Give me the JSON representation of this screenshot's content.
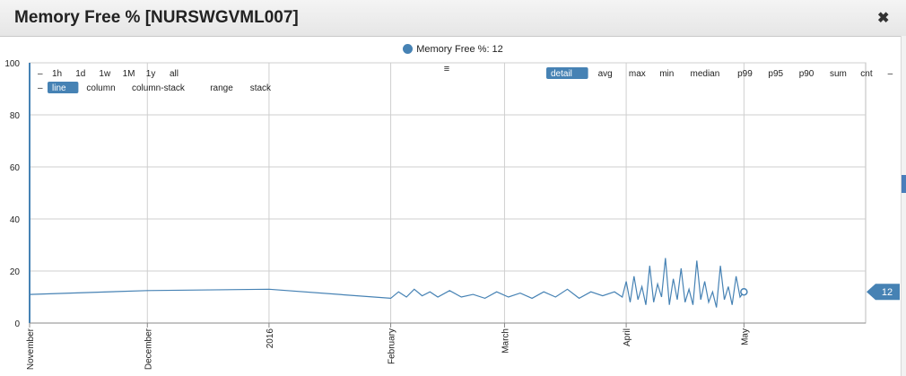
{
  "window": {
    "title": "Memory Free % [NURSWGVML007]",
    "close_icon": "close-icon",
    "accent_color": "#4682b4"
  },
  "legend": {
    "label": "Memory Free %: 12"
  },
  "range_buttons": [
    "1h",
    "1d",
    "1w",
    "1M",
    "1y",
    "all"
  ],
  "type_buttons": [
    "line",
    "column",
    "column-stack",
    "range",
    "stack"
  ],
  "type_selected": "line",
  "agg_buttons": [
    "detail",
    "avg",
    "max",
    "min",
    "median",
    "p99",
    "p95",
    "p90",
    "sum",
    "cnt"
  ],
  "agg_selected": "detail",
  "toggle_minus": "–",
  "menu_icon": "≡",
  "current_value_badge": "12",
  "chart_data": {
    "type": "line",
    "title": "",
    "xlabel": "",
    "ylabel": "",
    "ylim": [
      0,
      100
    ],
    "yticks": [
      0,
      20,
      40,
      60,
      80,
      100
    ],
    "xlim": [
      "2015-11-01",
      "2016-06-01"
    ],
    "xticks": [
      {
        "date": "2015-11-01",
        "label": "November"
      },
      {
        "date": "2015-12-01",
        "label": "December"
      },
      {
        "date": "2016-01-01",
        "label": "2016"
      },
      {
        "date": "2016-02-01",
        "label": "February"
      },
      {
        "date": "2016-03-01",
        "label": "March"
      },
      {
        "date": "2016-04-01",
        "label": "April"
      },
      {
        "date": "2016-05-01",
        "label": "May"
      }
    ],
    "grid": true,
    "legend_position": "top",
    "series": [
      {
        "name": "Memory Free %",
        "color": "#4682b4",
        "points": [
          [
            "2015-11-01",
            11
          ],
          [
            "2015-12-01",
            12.5
          ],
          [
            "2016-01-01",
            13
          ],
          [
            "2016-02-01",
            9.5
          ],
          [
            "2016-02-03",
            12
          ],
          [
            "2016-02-05",
            10
          ],
          [
            "2016-02-07",
            13
          ],
          [
            "2016-02-09",
            10.5
          ],
          [
            "2016-02-11",
            12
          ],
          [
            "2016-02-13",
            10
          ],
          [
            "2016-02-16",
            12.5
          ],
          [
            "2016-02-19",
            10
          ],
          [
            "2016-02-22",
            11
          ],
          [
            "2016-02-25",
            9.5
          ],
          [
            "2016-02-28",
            12
          ],
          [
            "2016-03-02",
            10
          ],
          [
            "2016-03-05",
            11.5
          ],
          [
            "2016-03-08",
            9.5
          ],
          [
            "2016-03-11",
            12
          ],
          [
            "2016-03-14",
            10
          ],
          [
            "2016-03-17",
            13
          ],
          [
            "2016-03-20",
            9.5
          ],
          [
            "2016-03-23",
            12
          ],
          [
            "2016-03-26",
            10.5
          ],
          [
            "2016-03-29",
            12
          ],
          [
            "2016-03-31",
            10
          ],
          [
            "2016-04-01",
            16
          ],
          [
            "2016-04-02",
            8
          ],
          [
            "2016-04-03",
            18
          ],
          [
            "2016-04-04",
            9
          ],
          [
            "2016-04-05",
            14
          ],
          [
            "2016-04-06",
            7
          ],
          [
            "2016-04-07",
            22
          ],
          [
            "2016-04-08",
            8
          ],
          [
            "2016-04-09",
            15
          ],
          [
            "2016-04-10",
            10
          ],
          [
            "2016-04-11",
            25
          ],
          [
            "2016-04-12",
            7
          ],
          [
            "2016-04-13",
            17
          ],
          [
            "2016-04-14",
            9
          ],
          [
            "2016-04-15",
            21
          ],
          [
            "2016-04-16",
            8
          ],
          [
            "2016-04-17",
            13
          ],
          [
            "2016-04-18",
            7
          ],
          [
            "2016-04-19",
            24
          ],
          [
            "2016-04-20",
            9
          ],
          [
            "2016-04-21",
            16
          ],
          [
            "2016-04-22",
            8
          ],
          [
            "2016-04-23",
            12
          ],
          [
            "2016-04-24",
            6
          ],
          [
            "2016-04-25",
            22
          ],
          [
            "2016-04-26",
            9
          ],
          [
            "2016-04-27",
            14
          ],
          [
            "2016-04-28",
            7
          ],
          [
            "2016-04-29",
            18
          ],
          [
            "2016-04-30",
            10
          ],
          [
            "2016-05-01",
            12
          ]
        ]
      }
    ]
  }
}
